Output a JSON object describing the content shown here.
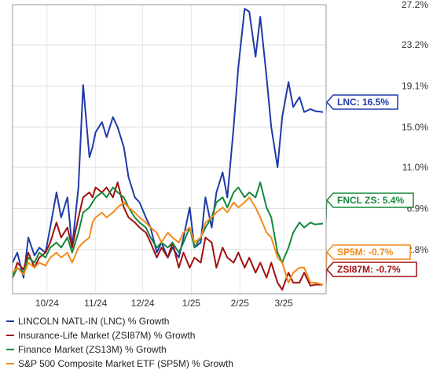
{
  "chart_data": {
    "type": "line",
    "yaxis_side": "right",
    "y_ticks": [
      "27.2%",
      "23.2%",
      "19.1%",
      "15.0%",
      "11.0%",
      "6.9%",
      "2.8%"
    ],
    "ylim": [
      -1.6,
      27.2
    ],
    "x_ticks": [
      "10/24",
      "11/24",
      "12/24",
      "1/25",
      "2/25",
      "3/25"
    ],
    "x_range": [
      "2024-09-16",
      "2025-04-04"
    ],
    "series": [
      {
        "name": "LINCOLN NATL-IN (LNC) % Growth",
        "color": "#1f3aa8",
        "end_label": "LNC: 16.5%",
        "dates": [
          "2024-09-16",
          "2024-09-19",
          "2024-09-23",
          "2024-09-26",
          "2024-09-30",
          "2024-10-03",
          "2024-10-07",
          "2024-10-10",
          "2024-10-14",
          "2024-10-17",
          "2024-10-21",
          "2024-10-24",
          "2024-10-28",
          "2024-10-31",
          "2024-11-04",
          "2024-11-06",
          "2024-11-08",
          "2024-11-12",
          "2024-11-15",
          "2024-11-19",
          "2024-11-22",
          "2024-11-26",
          "2024-11-29",
          "2024-12-03",
          "2024-12-06",
          "2024-12-10",
          "2024-12-13",
          "2024-12-17",
          "2024-12-20",
          "2024-12-24",
          "2024-12-27",
          "2024-12-31",
          "2025-01-03",
          "2025-01-07",
          "2025-01-10",
          "2025-01-14",
          "2025-01-17",
          "2025-01-21",
          "2025-01-24",
          "2025-01-28",
          "2025-01-31",
          "2025-02-04",
          "2025-02-07",
          "2025-02-11",
          "2025-02-14",
          "2025-02-18",
          "2025-02-21",
          "2025-02-25",
          "2025-02-28",
          "2025-03-04",
          "2025-03-07",
          "2025-03-11",
          "2025-03-14",
          "2025-03-18",
          "2025-03-21",
          "2025-03-25",
          "2025-03-28",
          "2025-04-02"
        ],
        "values": [
          1.5,
          2.5,
          0.0,
          4.0,
          2.2,
          3.0,
          2.5,
          5.0,
          8.5,
          6.0,
          8.0,
          3.0,
          9.0,
          19.2,
          12.0,
          13.0,
          14.5,
          15.5,
          14.0,
          16.0,
          15.0,
          13.0,
          10.0,
          8.0,
          7.5,
          6.0,
          5.0,
          2.5,
          3.5,
          2.0,
          3.0,
          2.0,
          4.0,
          7.0,
          3.0,
          3.5,
          8.0,
          5.0,
          8.5,
          10.5,
          8.0,
          15.0,
          21.0,
          26.8,
          26.5,
          22.0,
          26.0,
          20.0,
          15.0,
          11.0,
          16.0,
          19.5,
          17.0,
          18.0,
          16.5,
          16.8,
          16.6,
          16.5
        ]
      },
      {
        "name": "Insurance-Life Market (ZSI87M) % Growth",
        "color": "#a01010",
        "end_label": "ZSI87M: -0.7%",
        "dates": [
          "2024-09-16",
          "2024-09-19",
          "2024-09-23",
          "2024-09-26",
          "2024-09-30",
          "2024-10-03",
          "2024-10-07",
          "2024-10-10",
          "2024-10-14",
          "2024-10-17",
          "2024-10-21",
          "2024-10-24",
          "2024-10-28",
          "2024-10-31",
          "2024-11-04",
          "2024-11-06",
          "2024-11-08",
          "2024-11-12",
          "2024-11-15",
          "2024-11-19",
          "2024-11-22",
          "2024-11-26",
          "2024-11-29",
          "2024-12-03",
          "2024-12-06",
          "2024-12-10",
          "2024-12-13",
          "2024-12-17",
          "2024-12-20",
          "2024-12-24",
          "2024-12-27",
          "2024-12-31",
          "2025-01-03",
          "2025-01-07",
          "2025-01-10",
          "2025-01-14",
          "2025-01-17",
          "2025-01-21",
          "2025-01-24",
          "2025-01-28",
          "2025-01-31",
          "2025-02-04",
          "2025-02-07",
          "2025-02-11",
          "2025-02-14",
          "2025-02-18",
          "2025-02-21",
          "2025-02-25",
          "2025-02-28",
          "2025-03-04",
          "2025-03-07",
          "2025-03-11",
          "2025-03-14",
          "2025-03-18",
          "2025-03-21",
          "2025-03-25",
          "2025-03-28",
          "2025-04-02"
        ],
        "values": [
          0.0,
          1.5,
          0.8,
          2.5,
          1.0,
          2.0,
          2.5,
          3.5,
          5.5,
          4.0,
          5.0,
          3.0,
          6.0,
          8.0,
          8.5,
          8.0,
          9.0,
          8.5,
          9.0,
          8.0,
          9.5,
          7.0,
          6.0,
          5.5,
          5.0,
          4.5,
          3.5,
          2.0,
          3.0,
          2.0,
          3.5,
          1.0,
          2.5,
          1.0,
          2.0,
          1.5,
          4.0,
          3.5,
          1.0,
          3.0,
          2.0,
          1.5,
          2.5,
          1.0,
          2.0,
          0.5,
          1.5,
          0.0,
          1.5,
          -0.5,
          -1.2,
          0.5,
          -0.5,
          -0.5,
          0.5,
          -0.8,
          -0.7,
          -0.7
        ]
      },
      {
        "name": "Finance Market (ZS13M) % Growth",
        "color": "#15883a",
        "end_label": "FNCL ZS: 5.4%",
        "dates": [
          "2024-09-16",
          "2024-09-19",
          "2024-09-23",
          "2024-09-26",
          "2024-09-30",
          "2024-10-03",
          "2024-10-07",
          "2024-10-10",
          "2024-10-14",
          "2024-10-17",
          "2024-10-21",
          "2024-10-24",
          "2024-10-28",
          "2024-10-31",
          "2024-11-04",
          "2024-11-06",
          "2024-11-08",
          "2024-11-12",
          "2024-11-15",
          "2024-11-19",
          "2024-11-22",
          "2024-11-26",
          "2024-11-29",
          "2024-12-03",
          "2024-12-06",
          "2024-12-10",
          "2024-12-13",
          "2024-12-17",
          "2024-12-20",
          "2024-12-24",
          "2024-12-27",
          "2024-12-31",
          "2025-01-03",
          "2025-01-07",
          "2025-01-10",
          "2025-01-14",
          "2025-01-17",
          "2025-01-21",
          "2025-01-24",
          "2025-01-28",
          "2025-01-31",
          "2025-02-04",
          "2025-02-07",
          "2025-02-11",
          "2025-02-14",
          "2025-02-18",
          "2025-02-21",
          "2025-02-25",
          "2025-02-28",
          "2025-03-04",
          "2025-03-07",
          "2025-03-11",
          "2025-03-14",
          "2025-03-18",
          "2025-03-21",
          "2025-03-25",
          "2025-03-28",
          "2025-04-02"
        ],
        "values": [
          0.0,
          1.0,
          0.5,
          2.0,
          1.5,
          2.5,
          2.0,
          3.0,
          3.5,
          3.0,
          4.0,
          2.5,
          4.5,
          6.5,
          7.0,
          7.5,
          8.0,
          8.5,
          8.0,
          9.0,
          8.5,
          8.0,
          7.0,
          6.0,
          5.5,
          5.0,
          4.0,
          3.0,
          3.5,
          3.0,
          3.5,
          2.5,
          3.5,
          5.0,
          3.0,
          4.0,
          5.0,
          6.0,
          7.5,
          8.0,
          7.0,
          8.5,
          9.0,
          8.0,
          8.5,
          8.0,
          9.5,
          7.0,
          6.0,
          2.5,
          1.5,
          3.0,
          4.5,
          5.5,
          5.0,
          5.5,
          5.3,
          5.4
        ]
      },
      {
        "name": "S&P 500 Composite Market ETF (SP5M) % Growth",
        "color": "#f28a1a",
        "end_label": "SP5M: -0.7%",
        "dates": [
          "2024-09-16",
          "2024-09-19",
          "2024-09-23",
          "2024-09-26",
          "2024-09-30",
          "2024-10-03",
          "2024-10-07",
          "2024-10-10",
          "2024-10-14",
          "2024-10-17",
          "2024-10-21",
          "2024-10-24",
          "2024-10-28",
          "2024-10-31",
          "2024-11-04",
          "2024-11-06",
          "2024-11-08",
          "2024-11-12",
          "2024-11-15",
          "2024-11-19",
          "2024-11-22",
          "2024-11-26",
          "2024-11-29",
          "2024-12-03",
          "2024-12-06",
          "2024-12-10",
          "2024-12-13",
          "2024-12-17",
          "2024-12-20",
          "2024-12-24",
          "2024-12-27",
          "2024-12-31",
          "2025-01-03",
          "2025-01-07",
          "2025-01-10",
          "2025-01-14",
          "2025-01-17",
          "2025-01-21",
          "2025-01-24",
          "2025-01-28",
          "2025-01-31",
          "2025-02-04",
          "2025-02-07",
          "2025-02-11",
          "2025-02-14",
          "2025-02-18",
          "2025-02-21",
          "2025-02-25",
          "2025-02-28",
          "2025-03-04",
          "2025-03-07",
          "2025-03-11",
          "2025-03-14",
          "2025-03-18",
          "2025-03-21",
          "2025-03-25",
          "2025-03-28",
          "2025-04-02"
        ],
        "values": [
          0.5,
          1.0,
          0.3,
          1.5,
          1.0,
          1.5,
          1.2,
          2.0,
          2.5,
          2.0,
          2.5,
          1.5,
          3.0,
          3.5,
          4.0,
          5.5,
          6.0,
          6.5,
          6.0,
          6.5,
          7.0,
          7.5,
          7.0,
          6.5,
          6.0,
          5.5,
          5.0,
          4.5,
          3.5,
          4.5,
          4.0,
          3.5,
          4.5,
          5.0,
          3.5,
          4.0,
          5.5,
          6.0,
          6.5,
          7.0,
          6.5,
          7.5,
          7.0,
          7.5,
          8.0,
          7.0,
          6.0,
          4.5,
          4.0,
          2.0,
          1.5,
          -0.5,
          0.5,
          1.0,
          1.0,
          -0.5,
          -0.5,
          -0.7
        ]
      }
    ]
  }
}
